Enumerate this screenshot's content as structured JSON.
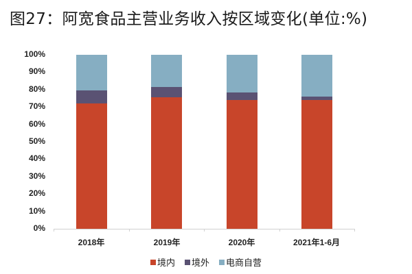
{
  "title": "图27：阿宽食品主营业务收入按区域变化(单位:%)",
  "colors": {
    "境内": "#c8452a",
    "境外": "#5a5273",
    "电商自营": "#86aec2"
  },
  "chart_data": {
    "type": "bar",
    "stacked": true,
    "percent_stacked": true,
    "title": "阿宽食品主营业务收入按区域变化(单位:%)",
    "xlabel": "",
    "ylabel": "",
    "ylim": [
      0,
      100
    ],
    "yticks": [
      "0%",
      "10%",
      "20%",
      "30%",
      "40%",
      "50%",
      "60%",
      "70%",
      "80%",
      "90%",
      "100%"
    ],
    "categories": [
      "2018年",
      "2019年",
      "2020年",
      "2021年1-6月"
    ],
    "series": [
      {
        "name": "境内",
        "color": "#c8452a",
        "values": [
          72.2,
          75.6,
          74.0,
          74.0
        ]
      },
      {
        "name": "境外",
        "color": "#5a5273",
        "values": [
          7.4,
          5.9,
          4.3,
          2.0
        ]
      },
      {
        "name": "电商自营",
        "color": "#86aec2",
        "values": [
          20.4,
          18.5,
          21.7,
          24.0
        ]
      }
    ],
    "legend_position": "bottom",
    "grid": false
  }
}
